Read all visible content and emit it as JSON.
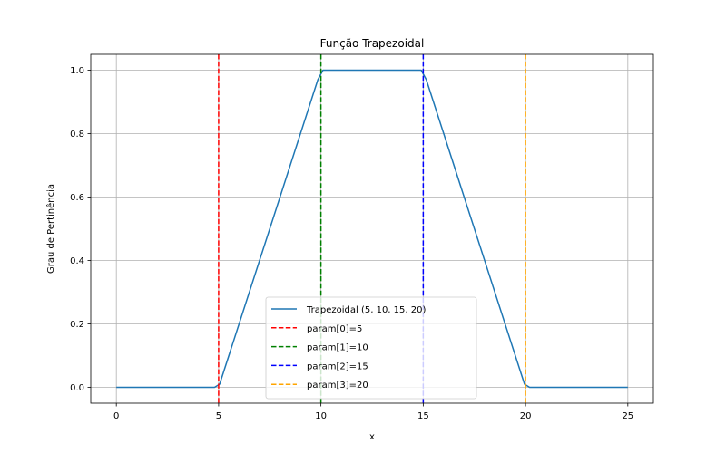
{
  "chart_data": {
    "type": "line",
    "title": "Função Trapezoidal",
    "xlabel": "x",
    "ylabel": "Grau de Pertinência",
    "xlim": [
      -1.25,
      26.25
    ],
    "ylim": [
      -0.05,
      1.05
    ],
    "xticks": [
      0,
      5,
      10,
      15,
      20,
      25
    ],
    "xtick_labels": [
      "0",
      "5",
      "10",
      "15",
      "20",
      "25"
    ],
    "yticks": [
      0.0,
      0.2,
      0.4,
      0.6,
      0.8,
      1.0
    ],
    "ytick_labels": [
      "0.0",
      "0.2",
      "0.4",
      "0.6",
      "0.8",
      "1.0"
    ],
    "grid": true,
    "legend_position": "lower center",
    "series": [
      {
        "name": "Trapezoidal (5, 10, 15, 20)",
        "color": "#1f77b4",
        "style": "solid",
        "x": [
          0,
          4.8,
          5.05,
          9.85,
          10.1,
          14.9,
          15.15,
          19.95,
          20.2,
          25
        ],
        "y": [
          0,
          0,
          0.01,
          0.97,
          1.0,
          1.0,
          0.97,
          0.01,
          0,
          0
        ]
      }
    ],
    "vlines": [
      {
        "name": "param[0]=5",
        "x": 5,
        "color": "#ff0000"
      },
      {
        "name": "param[1]=10",
        "x": 10,
        "color": "#008000"
      },
      {
        "name": "param[2]=15",
        "x": 15,
        "color": "#0000ff"
      },
      {
        "name": "param[3]=20",
        "x": 20,
        "color": "#ffa500"
      }
    ]
  }
}
